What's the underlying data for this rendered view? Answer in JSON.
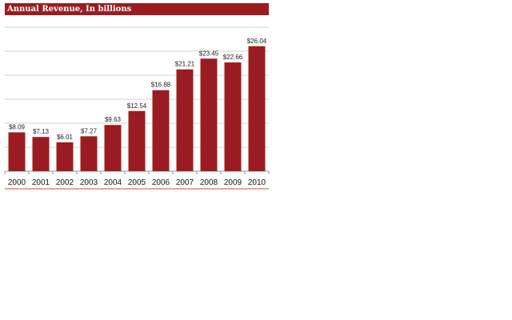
{
  "chart_data": {
    "type": "bar",
    "title": "Annual Revenue, In billions",
    "categories": [
      "2000",
      "2001",
      "2002",
      "2003",
      "2004",
      "2005",
      "2006",
      "2007",
      "2008",
      "2009",
      "2010"
    ],
    "values": [
      8.09,
      7.13,
      6.01,
      7.27,
      9.63,
      12.54,
      16.88,
      21.21,
      23.45,
      22.66,
      26.04
    ],
    "data_labels": [
      "$8.09",
      "$7.13",
      "$6.01",
      "$7.27",
      "$9.63",
      "$12.54",
      "$16.88",
      "$21.21",
      "$23.45",
      "$22.66",
      "$26.04"
    ],
    "ylim": [
      0,
      30
    ],
    "yticks": [
      0,
      5,
      10,
      15,
      20,
      25,
      30
    ],
    "grid": true,
    "bar_color": "#9b1c20",
    "grid_color": "#d0d0d0",
    "accent_line_color": "#d04a3a"
  }
}
